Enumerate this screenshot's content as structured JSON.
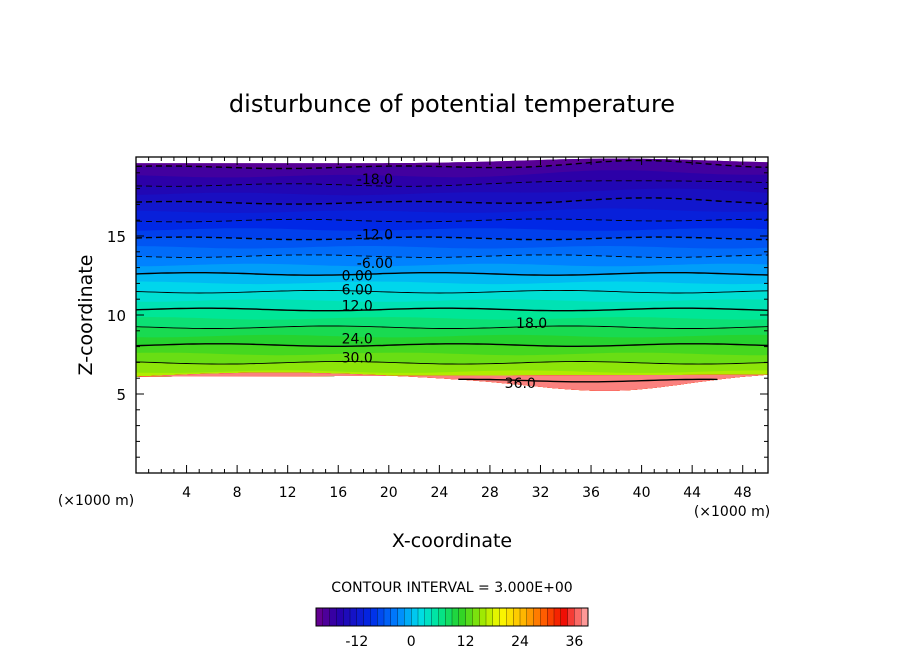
{
  "chart_data": {
    "type": "contour",
    "title": "disturbunce of potential temperature",
    "xlabel": "X-coordinate",
    "ylabel": "Z-coordinate",
    "x_unit": "(×1000 m)",
    "y_unit": "(×1000 m)",
    "xlim": [
      0,
      50
    ],
    "ylim": [
      0,
      20
    ],
    "x_ticks": [
      4,
      8,
      12,
      16,
      20,
      24,
      28,
      32,
      36,
      40,
      44,
      48
    ],
    "y_ticks": [
      5,
      10,
      15
    ],
    "contour_interval_label": "CONTOUR INTERVAL = 3.000E+00",
    "contour_interval": 3.0,
    "colorbar": {
      "min": -21,
      "max": 39,
      "ticks": [
        -12,
        0,
        12,
        24,
        36
      ]
    },
    "contour_labels": [
      {
        "text": "-18.0",
        "x": 18.9,
        "z": 18.6
      },
      {
        "text": "-12.0",
        "x": 18.9,
        "z": 15.1
      },
      {
        "text": "-6.00",
        "x": 18.9,
        "z": 13.3
      },
      {
        "text": "0.00",
        "x": 17.5,
        "z": 12.5
      },
      {
        "text": "6.00",
        "x": 17.5,
        "z": 11.6
      },
      {
        "text": "12.0",
        "x": 17.5,
        "z": 10.6
      },
      {
        "text": "18.0",
        "x": 31.3,
        "z": 9.5
      },
      {
        "text": "24.0",
        "x": 17.5,
        "z": 8.5
      },
      {
        "text": "30.0",
        "x": 17.5,
        "z": 7.3
      },
      {
        "text": "36.0",
        "x": 30.4,
        "z": 5.7
      }
    ]
  }
}
